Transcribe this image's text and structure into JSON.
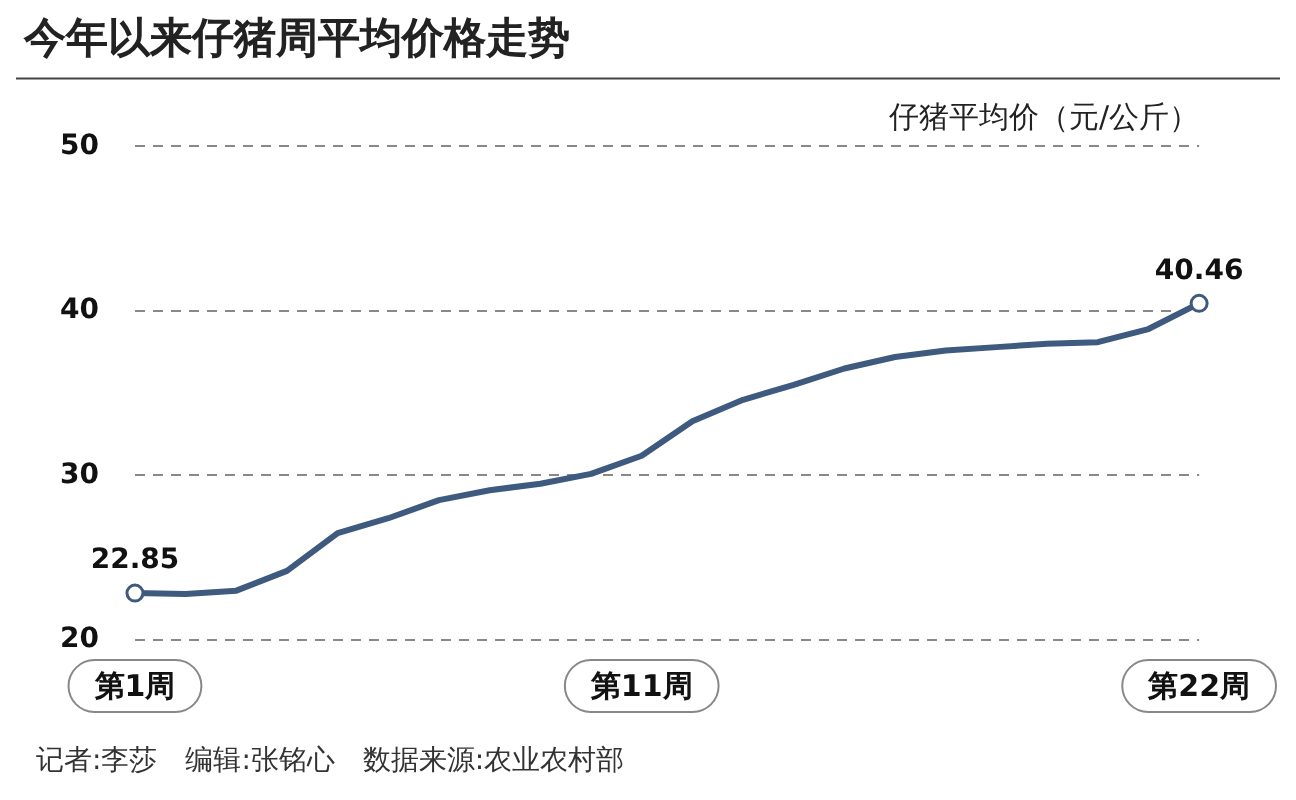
{
  "chart_data": {
    "type": "line",
    "title": "今年以来仔猪周平均价格走势",
    "ylabel": "仔猪平均价（元/公斤）",
    "categories": [
      "第1周",
      null,
      null,
      null,
      null,
      null,
      null,
      null,
      null,
      null,
      "第11周",
      null,
      null,
      null,
      null,
      null,
      null,
      null,
      null,
      null,
      null,
      "第22周"
    ],
    "series": [
      {
        "color": "#3e5a7e",
        "values": [
          22.85,
          22.8,
          23.0,
          24.2,
          26.5,
          27.4,
          28.5,
          29.1,
          29.5,
          30.1,
          31.2,
          33.3,
          34.6,
          35.5,
          36.5,
          37.2,
          37.6,
          37.8,
          38.0,
          38.1,
          38.9,
          40.46
        ],
        "value_labels": [
          "22.85",
          null,
          null,
          null,
          null,
          null,
          null,
          null,
          null,
          null,
          null,
          null,
          null,
          null,
          null,
          null,
          null,
          null,
          null,
          null,
          null,
          "40.46"
        ]
      }
    ],
    "ylim": [
      20,
      50
    ],
    "yticks": [
      20,
      30,
      40,
      50
    ],
    "grid": "y",
    "legend": false,
    "line_style": "solid",
    "annotations": [
      "记者:李莎　编辑:张铭心　数据来源:农业农村部"
    ]
  }
}
